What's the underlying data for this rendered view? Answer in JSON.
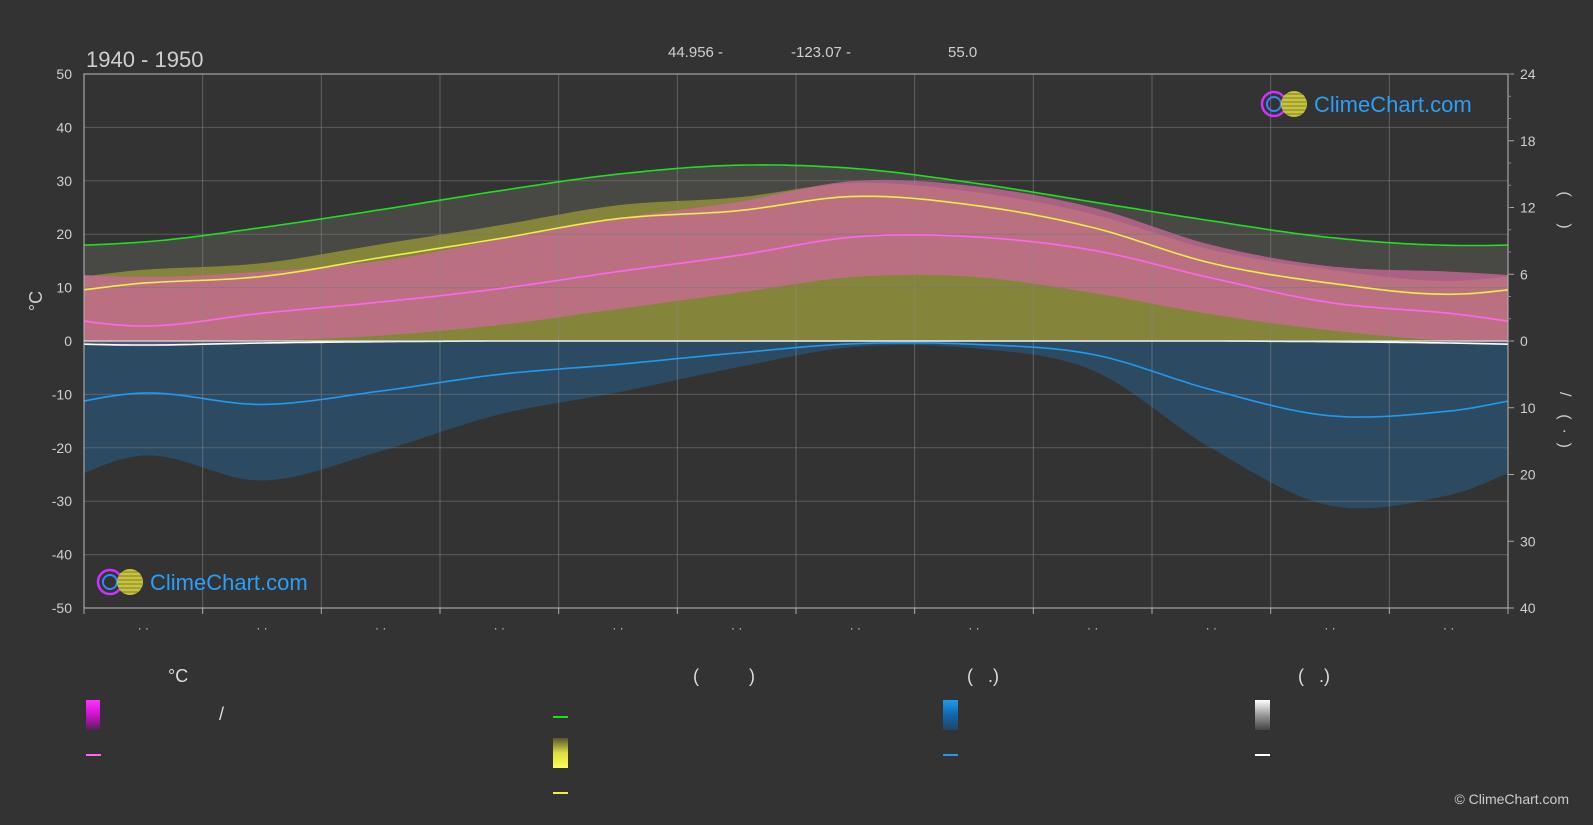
{
  "header": {
    "years": "1940 - 1950",
    "lat": "44.956 -",
    "lon": "-123.07 -",
    "elev": "55.0"
  },
  "logo_text": "ClimeChart.com",
  "copyright": "© ClimeChart.com",
  "legend": {
    "temp_unit": "°C",
    "sunshine_head": "(          )",
    "rain_head": "(   .)",
    "snow_head": "(   .)",
    "temp_range_sep": "/"
  },
  "colors": {
    "background": "#333333",
    "daylight": "#22dd22",
    "sunshine": "#eeee44",
    "temp_mean": "#ff66ee",
    "temp_range": "#dd22dd",
    "precip": "#2299ee",
    "snow": "#ffffff",
    "sunshine_fill": "#8f8f3a",
    "temp_fill": "#cc6a99"
  },
  "chart_data": {
    "type": "line",
    "x_label_months": [
      "· ·",
      "· ·",
      "· ·",
      "· ·",
      "· ·",
      "· ·",
      "· ·",
      "· ·",
      "· ·",
      "· ·",
      "· ·",
      "· ·"
    ],
    "ylim_left": [
      -50,
      50
    ],
    "yticks_left": [
      "50",
      "40",
      "30",
      "20",
      "10",
      "0",
      "-10",
      "-20",
      "-30",
      "-40",
      "-50"
    ],
    "ylabel_left": "°C",
    "yticks_right_top": [
      "24",
      "18",
      "12",
      "6",
      "0"
    ],
    "yticks_right_bottom": [
      "10",
      "20",
      "30",
      "40"
    ],
    "ylabel_right_top": "(      )",
    "ylabel_right_bottom": "/    (  ·  )",
    "grid": true,
    "months": [
      1,
      2,
      3,
      4,
      5,
      6,
      7,
      8,
      9,
      10,
      11,
      12
    ],
    "series": [
      {
        "key": "daylight_hours",
        "unit": "h",
        "axis": "right_top",
        "values": [
          8.9,
          10.2,
          11.8,
          13.5,
          15.0,
          15.8,
          15.5,
          14.2,
          12.5,
          10.8,
          9.3,
          8.6
        ]
      },
      {
        "key": "sunshine_hours",
        "unit": "h",
        "axis": "right_top",
        "values": [
          5.2,
          5.8,
          7.5,
          9.2,
          11.0,
          11.7,
          13.0,
          12.2,
          10.2,
          7.0,
          5.2,
          4.2
        ]
      },
      {
        "key": "temp_mean",
        "unit": "°C",
        "axis": "left",
        "values": [
          2.8,
          5.2,
          7.3,
          9.8,
          13.0,
          16.0,
          19.5,
          19.5,
          17.0,
          11.8,
          7.2,
          5.2
        ]
      },
      {
        "key": "temp_max_band",
        "unit": "°C",
        "axis": "left",
        "values": [
          12,
          13,
          15,
          19,
          23,
          26,
          30,
          29,
          25,
          18,
          14,
          13
        ]
      },
      {
        "key": "temp_min_band",
        "unit": "°C",
        "axis": "left",
        "values": [
          -1,
          0,
          1,
          3,
          6,
          9,
          12,
          12,
          9,
          5,
          2,
          0
        ]
      },
      {
        "key": "precip_mean",
        "unit": "mm",
        "axis": "right_bottom",
        "values": [
          7.8,
          9.5,
          7.5,
          5.0,
          3.5,
          1.8,
          0.4,
          0.5,
          2.0,
          7.3,
          11.2,
          10.5
        ]
      },
      {
        "key": "snow_mean",
        "unit": "mm",
        "axis": "right_bottom",
        "values": [
          0.6,
          0.3,
          0.1,
          0,
          0,
          0,
          0,
          0,
          0,
          0,
          0.1,
          0.3
        ]
      }
    ]
  }
}
